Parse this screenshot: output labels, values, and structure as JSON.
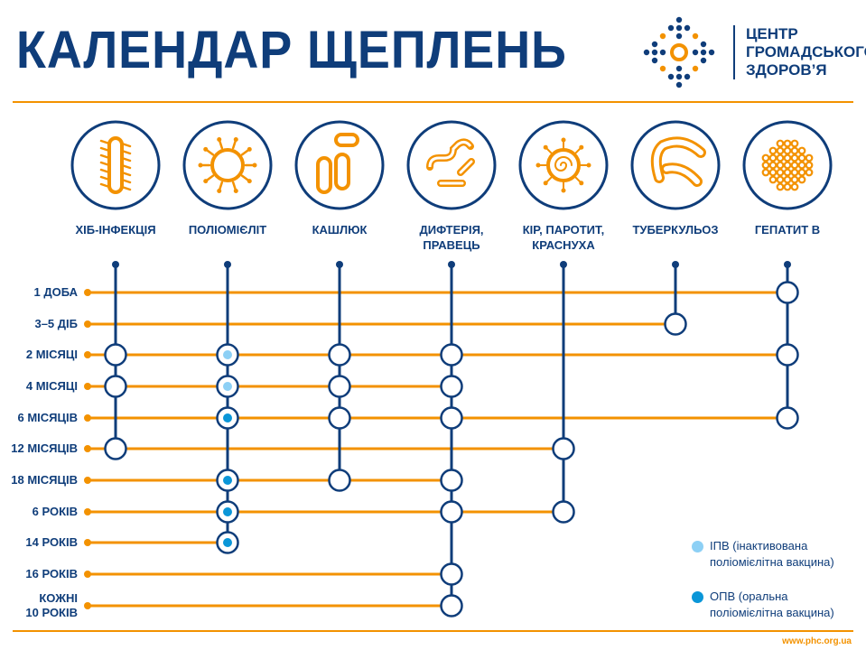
{
  "title": "КАЛЕНДАР ЩЕПЛЕНЬ",
  "logo": {
    "lines": [
      "ЦЕНТР",
      "ГРОМАДСЬКОГО",
      "ЗДОРОВ’Я"
    ]
  },
  "colors": {
    "navy": "#0f3d7a",
    "orange": "#f39200",
    "ipv": "#8dd0f5",
    "opv": "#0a96d8"
  },
  "vaccines": [
    {
      "label": "ХІБ-ІНФЕКЦІЯ",
      "icon": "rod-bacterium-icon"
    },
    {
      "label": "ПОЛІОМІЄЛІТ",
      "icon": "spiked-virus-icon"
    },
    {
      "label": "КАШЛЮК",
      "icon": "bacilli-icon"
    },
    {
      "label": "ДИФТЕРІЯ,\nПРАВЕЦЬ",
      "icon": "chain-bacteria-icon"
    },
    {
      "label": "КІР, ПАРОТИТ,\nКРАСНУХА",
      "icon": "measles-virus-icon"
    },
    {
      "label": "ТУБЕРКУЛЬОЗ",
      "icon": "curved-bacilli-icon"
    },
    {
      "label": "ГЕПАТИТ В",
      "icon": "hepatitis-virus-icon"
    }
  ],
  "ages": [
    "1 ДОБА",
    "3–5 ДІБ",
    "2 МІСЯЦІ",
    "4 МІСЯЦІ",
    "6 МІСЯЦІВ",
    "12 МІСЯЦІВ",
    "18 МІСЯЦІВ",
    "6 РОКІВ",
    "14 РОКІВ",
    "16 РОКІВ",
    "КОЖНІ\n10 РОКІВ"
  ],
  "schedule": [
    {
      "vaccine": "ХІБ-ІНФЕКЦІЯ",
      "doses": [
        {
          "age": 2
        },
        {
          "age": 3
        },
        {
          "age": 5
        }
      ]
    },
    {
      "vaccine": "ПОЛІОМІЄЛІТ",
      "doses": [
        {
          "age": 2,
          "type": "ipv"
        },
        {
          "age": 3,
          "type": "ipv"
        },
        {
          "age": 4,
          "type": "opv"
        },
        {
          "age": 6,
          "type": "opv"
        },
        {
          "age": 7,
          "type": "opv"
        },
        {
          "age": 8,
          "type": "opv"
        }
      ]
    },
    {
      "vaccine": "КАШЛЮК",
      "doses": [
        {
          "age": 2
        },
        {
          "age": 3
        },
        {
          "age": 4
        },
        {
          "age": 6
        }
      ]
    },
    {
      "vaccine": "ДИФТЕРІЯ, ПРАВЕЦЬ",
      "doses": [
        {
          "age": 2
        },
        {
          "age": 3
        },
        {
          "age": 4
        },
        {
          "age": 6
        },
        {
          "age": 7
        },
        {
          "age": 9
        },
        {
          "age": 10
        }
      ]
    },
    {
      "vaccine": "КІР, ПАРОТИТ, КРАСНУХА",
      "doses": [
        {
          "age": 5
        },
        {
          "age": 7
        }
      ]
    },
    {
      "vaccine": "ТУБЕРКУЛЬОЗ",
      "doses": [
        {
          "age": 1
        }
      ]
    },
    {
      "vaccine": "ГЕПАТИТ В",
      "doses": [
        {
          "age": 0
        },
        {
          "age": 2
        },
        {
          "age": 4
        }
      ]
    }
  ],
  "legend": [
    {
      "type": "ipv",
      "text": "ІПВ (інактивована поліомієлітна вакцина)",
      "line1": "ІПВ (інактивована",
      "line2": "поліомієлітна вакцина)"
    },
    {
      "type": "opv",
      "text": "ОПВ (оральна поліомієлітна вакцина)",
      "line1": "ОПВ (оральна",
      "line2": "поліомієлітна вакцина)"
    }
  ],
  "url": "www.phc.org.ua"
}
